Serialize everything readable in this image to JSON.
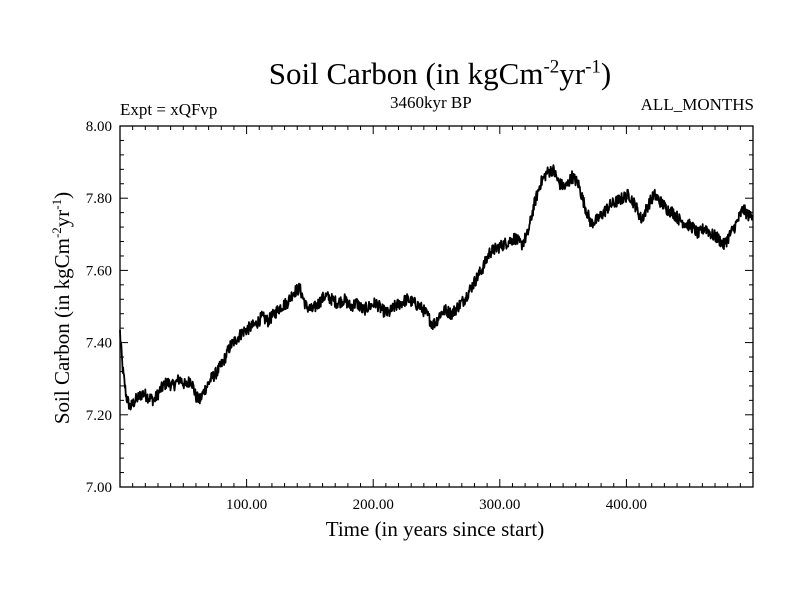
{
  "chart_data": {
    "type": "line",
    "title": "Soil Carbon (in kgCm",
    "title_exp1": "-2",
    "title_mid": "yr",
    "title_exp2": "-1",
    "title_end": ")",
    "subtitle_left": "Expt = xQFvp",
    "subtitle_center": "3460kyr BP",
    "subtitle_right": "ALL_MONTHS",
    "xlabel": "Time (in years since start)",
    "ylabel_main": "Soil Carbon (in kgCm",
    "ylabel_exp1": "-2",
    "ylabel_mid": "yr",
    "ylabel_exp2": "-1",
    "ylabel_end": ")",
    "xlim": [
      0,
      500
    ],
    "ylim": [
      7.0,
      8.0
    ],
    "xticks": [
      100,
      200,
      300,
      400
    ],
    "xtick_labels": [
      "100.00",
      "200.00",
      "300.00",
      "400.00"
    ],
    "yticks": [
      7.0,
      7.2,
      7.4,
      7.6,
      7.8,
      8.0
    ],
    "ytick_labels": [
      "7.00",
      "7.20",
      "7.40",
      "7.60",
      "7.80",
      "8.00"
    ],
    "grid": false,
    "series": [
      {
        "name": "Soil Carbon",
        "x": [
          0,
          2,
          5,
          8,
          12,
          18,
          22,
          27,
          32,
          37,
          42,
          47,
          52,
          56,
          60,
          63,
          67,
          72,
          77,
          82,
          87,
          92,
          97,
          102,
          107,
          112,
          117,
          122,
          127,
          132,
          137,
          142,
          147,
          152,
          157,
          162,
          167,
          172,
          177,
          182,
          187,
          192,
          197,
          202,
          207,
          212,
          217,
          222,
          227,
          232,
          237,
          242,
          247,
          250,
          253,
          257,
          262,
          267,
          272,
          277,
          282,
          287,
          292,
          297,
          302,
          307,
          312,
          317,
          322,
          327,
          332,
          337,
          342,
          347,
          352,
          357,
          362,
          367,
          372,
          377,
          382,
          387,
          392,
          397,
          402,
          407,
          412,
          417,
          422,
          427,
          432,
          437,
          442,
          447,
          452,
          457,
          462,
          467,
          472,
          477,
          482,
          487,
          492,
          497,
          500
        ],
        "values": [
          7.43,
          7.33,
          7.25,
          7.22,
          7.24,
          7.26,
          7.25,
          7.24,
          7.27,
          7.29,
          7.28,
          7.3,
          7.28,
          7.3,
          7.25,
          7.24,
          7.27,
          7.3,
          7.32,
          7.35,
          7.39,
          7.41,
          7.43,
          7.44,
          7.45,
          7.47,
          7.46,
          7.48,
          7.5,
          7.51,
          7.54,
          7.55,
          7.5,
          7.49,
          7.51,
          7.53,
          7.52,
          7.51,
          7.52,
          7.5,
          7.51,
          7.49,
          7.5,
          7.51,
          7.49,
          7.48,
          7.5,
          7.51,
          7.52,
          7.51,
          7.5,
          7.48,
          7.45,
          7.46,
          7.48,
          7.49,
          7.48,
          7.5,
          7.52,
          7.55,
          7.58,
          7.61,
          7.65,
          7.66,
          7.67,
          7.68,
          7.69,
          7.67,
          7.7,
          7.78,
          7.84,
          7.87,
          7.88,
          7.84,
          7.83,
          7.86,
          7.84,
          7.78,
          7.73,
          7.74,
          7.76,
          7.78,
          7.79,
          7.8,
          7.81,
          7.78,
          7.74,
          7.78,
          7.81,
          7.79,
          7.77,
          7.76,
          7.74,
          7.73,
          7.72,
          7.7,
          7.72,
          7.7,
          7.69,
          7.67,
          7.7,
          7.73,
          7.77,
          7.75,
          7.76
        ]
      }
    ]
  }
}
